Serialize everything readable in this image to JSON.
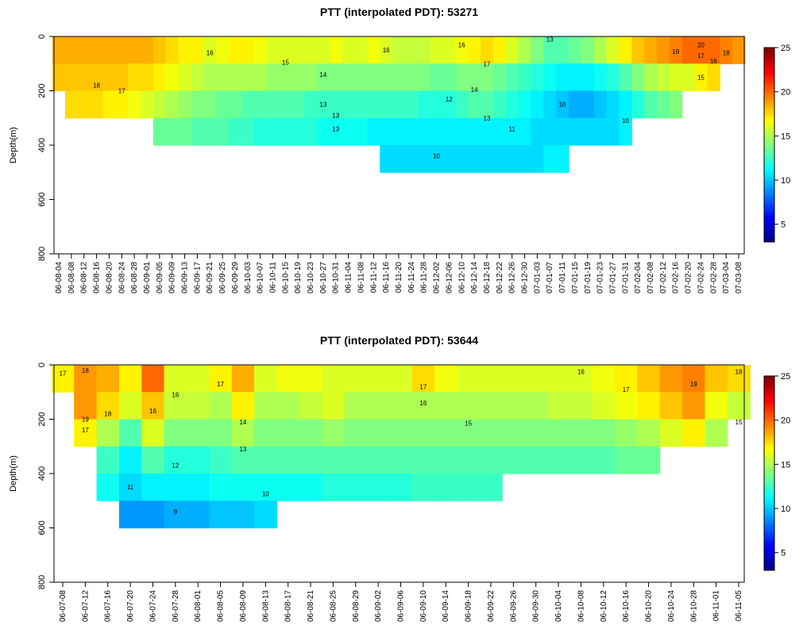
{
  "chart_data": [
    {
      "type": "heatmap",
      "title": "PTT (interpolated PDT): 53271",
      "ylabel": "Depth(m)",
      "categories": [
        "06-08-04",
        "06-08-08",
        "06-08-12",
        "06-08-16",
        "06-08-20",
        "06-08-24",
        "06-08-28",
        "06-09-01",
        "06-09-05",
        "06-09-09",
        "06-09-13",
        "06-09-17",
        "06-09-21",
        "06-09-25",
        "06-09-29",
        "06-10-03",
        "06-10-07",
        "06-10-11",
        "06-10-15",
        "06-10-19",
        "06-10-23",
        "06-10-27",
        "06-10-31",
        "06-11-04",
        "06-11-08",
        "06-11-12",
        "06-11-16",
        "06-11-20",
        "06-11-24",
        "06-11-28",
        "06-12-02",
        "06-12-06",
        "06-12-10",
        "06-12-14",
        "06-12-18",
        "06-12-22",
        "06-12-26",
        "06-12-30",
        "07-01-03",
        "07-01-07",
        "07-01-11",
        "07-01-15",
        "07-01-19",
        "07-01-23",
        "07-01-27",
        "07-01-31",
        "07-02-04",
        "07-02-08",
        "07-02-12",
        "07-02-16",
        "07-02-20",
        "07-02-24",
        "07-02-28",
        "07-03-04",
        "07-03-08"
      ],
      "depths": [
        0,
        100,
        200,
        300,
        400
      ],
      "z": [
        [
          18.5,
          18.5,
          18.5,
          18.5,
          18.5,
          18.5,
          18.5,
          18.5,
          18,
          17.5,
          17,
          17,
          16,
          16.5,
          17,
          17,
          16.5,
          16,
          16,
          16,
          16,
          16,
          16.5,
          16,
          16,
          16.5,
          16,
          15.5,
          15.5,
          15.5,
          16,
          16,
          16.5,
          17,
          17.5,
          17,
          16,
          15,
          14,
          13,
          13,
          13.5,
          14,
          15,
          16,
          17,
          18,
          18.5,
          19,
          19.5,
          20,
          20,
          20,
          19.5,
          19
        ],
        [
          18,
          18,
          18,
          18,
          18,
          18,
          17.5,
          17.5,
          17,
          16.5,
          16,
          15.5,
          15,
          15,
          15,
          15,
          15,
          14.5,
          14.5,
          14.5,
          14.5,
          14,
          14,
          14,
          14,
          14,
          14,
          14,
          14,
          14,
          13.5,
          13.5,
          14,
          14,
          14,
          13.5,
          13,
          12.5,
          12,
          11.5,
          11,
          11,
          11,
          11.5,
          12,
          13,
          14,
          15,
          15.5,
          16,
          16,
          17,
          17.5,
          null,
          null
        ],
        [
          null,
          17.5,
          17.5,
          17.5,
          17,
          17,
          16.5,
          16,
          15.5,
          15,
          14.5,
          14,
          14,
          13.5,
          13.5,
          13,
          13,
          13,
          13,
          13,
          12.5,
          12.5,
          12.5,
          12.5,
          12.5,
          12.5,
          12.5,
          12.5,
          12.5,
          12,
          12,
          12,
          12.5,
          13,
          13,
          12.5,
          12,
          11.5,
          11,
          10.5,
          10,
          9.5,
          9.5,
          10,
          10.5,
          11,
          12,
          13,
          13.5,
          14,
          null,
          null,
          null,
          null,
          null
        ],
        [
          null,
          null,
          null,
          null,
          null,
          null,
          null,
          null,
          13.5,
          13.5,
          13.5,
          13,
          13,
          13,
          12.5,
          12.5,
          12,
          12,
          12,
          12,
          12,
          11.5,
          11.5,
          11.5,
          11.5,
          11,
          11,
          11,
          11,
          11,
          11,
          11,
          11,
          11,
          11,
          11,
          11,
          11,
          10.5,
          10.5,
          10.5,
          10.5,
          10.5,
          10.5,
          10.5,
          11,
          null,
          null,
          null,
          null,
          null,
          null,
          null,
          null,
          null
        ],
        [
          null,
          null,
          null,
          null,
          null,
          null,
          null,
          null,
          null,
          null,
          null,
          null,
          null,
          null,
          null,
          null,
          null,
          null,
          null,
          null,
          null,
          null,
          null,
          null,
          null,
          null,
          10.5,
          10.5,
          10.5,
          10.5,
          10.5,
          10.5,
          10.5,
          10.5,
          10.5,
          10.5,
          10.5,
          10.5,
          10.5,
          11,
          11,
          null,
          null,
          null,
          null,
          null,
          null,
          null,
          null,
          null,
          null,
          null,
          null,
          null,
          null
        ]
      ],
      "ylim": [
        0,
        800
      ],
      "yticks": [
        0,
        200,
        400,
        600,
        800
      ],
      "zlim": [
        3,
        25
      ],
      "zticks": [
        5,
        10,
        15,
        20,
        25
      ],
      "annotations": [
        {
          "text": "18",
          "x": "06-08-16",
          "y": 180
        },
        {
          "text": "17",
          "x": "06-08-24",
          "y": 200
        },
        {
          "text": "16",
          "x": "06-09-21",
          "y": 60
        },
        {
          "text": "15",
          "x": "06-10-15",
          "y": 95
        },
        {
          "text": "14",
          "x": "06-10-27",
          "y": 140
        },
        {
          "text": "13",
          "x": "06-10-27",
          "y": 250
        },
        {
          "text": "13",
          "x": "06-10-31",
          "y": 290
        },
        {
          "text": "13",
          "x": "06-10-31",
          "y": 340
        },
        {
          "text": "16",
          "x": "06-11-16",
          "y": 50
        },
        {
          "text": "12",
          "x": "06-12-06",
          "y": 230
        },
        {
          "text": "14",
          "x": "06-12-14",
          "y": 195
        },
        {
          "text": "13",
          "x": "06-12-18",
          "y": 300
        },
        {
          "text": "11",
          "x": "06-12-26",
          "y": 340
        },
        {
          "text": "10",
          "x": "06-12-02",
          "y": 440
        },
        {
          "text": "16",
          "x": "06-12-10",
          "y": 30
        },
        {
          "text": "17",
          "x": "06-12-18",
          "y": 100
        },
        {
          "text": "13",
          "x": "07-01-07",
          "y": 10
        },
        {
          "text": "10",
          "x": "07-01-11",
          "y": 250
        },
        {
          "text": "10",
          "x": "07-01-31",
          "y": 310
        },
        {
          "text": "19",
          "x": "07-02-16",
          "y": 55
        },
        {
          "text": "20",
          "x": "07-02-24",
          "y": 30
        },
        {
          "text": "17",
          "x": "07-02-24",
          "y": 70
        },
        {
          "text": "16",
          "x": "07-02-28",
          "y": 90
        },
        {
          "text": "18",
          "x": "07-03-04",
          "y": 60
        },
        {
          "text": "15",
          "x": "07-02-24",
          "y": 150
        }
      ]
    },
    {
      "type": "heatmap",
      "title": "PTT (interpolated PDT): 53644",
      "ylabel": "Depth(m)",
      "categories": [
        "06-07-08",
        "06-07-12",
        "06-07-16",
        "06-07-20",
        "06-07-24",
        "06-07-28",
        "06-08-01",
        "06-08-05",
        "06-08-09",
        "06-08-13",
        "06-08-17",
        "06-08-21",
        "06-08-25",
        "06-08-29",
        "06-09-02",
        "06-09-06",
        "06-09-10",
        "06-09-14",
        "06-09-18",
        "06-09-22",
        "06-09-26",
        "06-09-30",
        "06-10-04",
        "06-10-08",
        "06-10-12",
        "06-10-16",
        "06-10-20",
        "06-10-24",
        "06-10-28",
        "06-11-01",
        "06-11-05"
      ],
      "depths": [
        0,
        100,
        200,
        300,
        400,
        500
      ],
      "z": [
        [
          17,
          19,
          18.5,
          17,
          20,
          16,
          16,
          17,
          18.5,
          16,
          16.5,
          16.5,
          16,
          16,
          16,
          16,
          17.5,
          16.5,
          16,
          16,
          16,
          16,
          16,
          16,
          16.5,
          17,
          18,
          19,
          19.5,
          18,
          17.5
        ],
        [
          null,
          19,
          17.5,
          16,
          18,
          15.5,
          15.5,
          15,
          17,
          15,
          15,
          15.5,
          16,
          15,
          15,
          15,
          15,
          15,
          15,
          15,
          15,
          15,
          15.5,
          15.5,
          16,
          16.5,
          17,
          18,
          19,
          16.5,
          15.5
        ],
        [
          null,
          17,
          15,
          13,
          16,
          14,
          14,
          14,
          15,
          14,
          14,
          14,
          14.5,
          14,
          14,
          14,
          14,
          14,
          14,
          14,
          14,
          14,
          14,
          14,
          14,
          14.5,
          15,
          16,
          17,
          15,
          null
        ],
        [
          null,
          null,
          12.5,
          11,
          13,
          12,
          12,
          12.5,
          13,
          13,
          13,
          13,
          13,
          13,
          13,
          13,
          13,
          13,
          13,
          13,
          13,
          13,
          13,
          13,
          13,
          13.5,
          13.5,
          null,
          null,
          null,
          null
        ],
        [
          null,
          null,
          11.5,
          10.5,
          11,
          11,
          11,
          11.5,
          11.5,
          11.5,
          11.5,
          11.5,
          12,
          12,
          12,
          12,
          12.5,
          12.5,
          12.5,
          12.5,
          null,
          null,
          null,
          null,
          null,
          null,
          null,
          null,
          null,
          null,
          null
        ],
        [
          null,
          null,
          null,
          9,
          9,
          9.5,
          9.5,
          10,
          10,
          10.5,
          null,
          null,
          null,
          null,
          null,
          null,
          null,
          null,
          null,
          null,
          null,
          null,
          null,
          null,
          null,
          null,
          null,
          null,
          null,
          null,
          null
        ]
      ],
      "ylim": [
        0,
        800
      ],
      "yticks": [
        0,
        200,
        400,
        600,
        800
      ],
      "zlim": [
        3,
        25
      ],
      "zticks": [
        5,
        10,
        15,
        20,
        25
      ],
      "annotations": [
        {
          "text": "17",
          "x": "06-07-08",
          "y": 30
        },
        {
          "text": "18",
          "x": "06-07-12",
          "y": 20
        },
        {
          "text": "19",
          "x": "06-07-12",
          "y": 200
        },
        {
          "text": "17",
          "x": "06-07-12",
          "y": 240
        },
        {
          "text": "18",
          "x": "06-07-16",
          "y": 180
        },
        {
          "text": "16",
          "x": "06-07-28",
          "y": 110
        },
        {
          "text": "16",
          "x": "06-07-24",
          "y": 170
        },
        {
          "text": "17",
          "x": "06-08-05",
          "y": 70
        },
        {
          "text": "14",
          "x": "06-08-09",
          "y": 210
        },
        {
          "text": "13",
          "x": "06-08-09",
          "y": 310
        },
        {
          "text": "12",
          "x": "06-07-28",
          "y": 370
        },
        {
          "text": "11",
          "x": "06-07-20",
          "y": 450
        },
        {
          "text": "10",
          "x": "06-08-13",
          "y": 475
        },
        {
          "text": "9",
          "x": "06-07-28",
          "y": 540
        },
        {
          "text": "17",
          "x": "06-09-10",
          "y": 80
        },
        {
          "text": "16",
          "x": "06-09-10",
          "y": 140
        },
        {
          "text": "15",
          "x": "06-09-18",
          "y": 215
        },
        {
          "text": "16",
          "x": "06-10-08",
          "y": 25
        },
        {
          "text": "17",
          "x": "06-10-16",
          "y": 90
        },
        {
          "text": "19",
          "x": "06-10-28",
          "y": 70
        },
        {
          "text": "18",
          "x": "06-11-05",
          "y": 25
        },
        {
          "text": "15",
          "x": "06-11-05",
          "y": 210
        }
      ]
    }
  ]
}
